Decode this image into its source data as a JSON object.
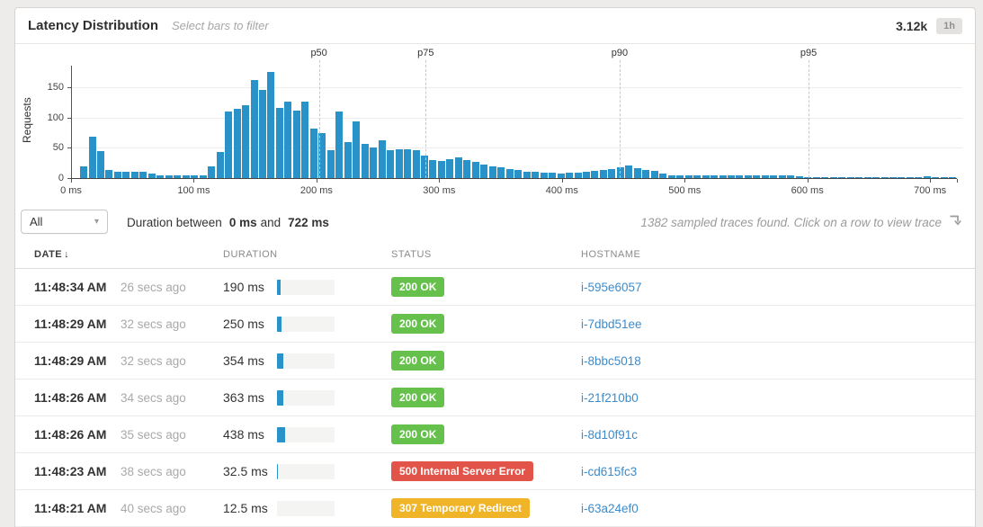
{
  "header": {
    "title": "Latency Distribution",
    "subtitle": "Select bars to filter",
    "trace_count": "3.12k",
    "time_range": "1h"
  },
  "chart_data": {
    "type": "bar",
    "ylabel": "Requests",
    "y_ticks": [
      0,
      50,
      100,
      150
    ],
    "ylim": [
      0,
      180
    ],
    "x_tick_labels": [
      "0 ms",
      "100 ms",
      "200 ms",
      "300 ms",
      "400 ms",
      "500 ms",
      "600 ms",
      "700 ms"
    ],
    "x_ticks_ms": [
      0,
      100,
      200,
      300,
      400,
      500,
      600,
      700
    ],
    "xlim_ms": [
      0,
      722
    ],
    "bar_width_ms": 6.94,
    "bar_color": "#2992c9",
    "grid": true,
    "values": [
      0,
      20,
      68,
      44,
      14,
      10,
      10,
      10,
      11,
      7,
      5,
      5,
      5,
      5,
      5,
      5,
      20,
      43,
      110,
      114,
      121,
      162,
      146,
      175,
      116,
      126,
      111,
      126,
      81,
      74,
      46,
      110,
      59,
      94,
      56,
      51,
      62,
      46,
      47,
      47,
      46,
      37,
      30,
      28,
      31,
      34,
      29,
      26,
      23,
      20,
      18,
      15,
      13,
      11,
      10,
      9,
      9,
      8,
      9,
      9,
      10,
      12,
      13,
      15,
      18,
      21,
      16,
      13,
      12,
      7,
      5,
      5,
      5,
      5,
      5,
      5,
      5,
      5,
      5,
      5,
      5,
      5,
      5,
      5,
      5,
      3,
      2,
      2,
      2,
      2,
      2,
      2,
      2,
      2,
      2,
      2,
      2,
      2,
      2,
      2,
      3,
      2,
      2,
      2
    ],
    "percentiles": [
      {
        "label": "p50",
        "ms": 202
      },
      {
        "label": "p75",
        "ms": 289
      },
      {
        "label": "p90",
        "ms": 447
      },
      {
        "label": "p95",
        "ms": 601
      }
    ]
  },
  "controls": {
    "filter_value": "All",
    "duration_prefix": "Duration between",
    "duration_min": "0 ms",
    "duration_and": "and",
    "duration_max": "722 ms",
    "summary": "1382 sampled traces found. Click on a row to view trace"
  },
  "icons": {
    "dropdown_caret": "▾",
    "sort_desc": "↓"
  },
  "table": {
    "columns": [
      "DATE",
      "DURATION",
      "STATUS",
      "HOSTNAME"
    ],
    "sort_column": "DATE",
    "rows": [
      {
        "time": "11:48:34 AM",
        "ago": "26 secs ago",
        "duration": "190 ms",
        "duration_fill_pct": 6,
        "status": "200 OK",
        "status_type": "success",
        "hostname": "i-595e6057"
      },
      {
        "time": "11:48:29 AM",
        "ago": "32 secs ago",
        "duration": "250 ms",
        "duration_fill_pct": 8,
        "status": "200 OK",
        "status_type": "success",
        "hostname": "i-7dbd51ee"
      },
      {
        "time": "11:48:29 AM",
        "ago": "32 secs ago",
        "duration": "354 ms",
        "duration_fill_pct": 11,
        "status": "200 OK",
        "status_type": "success",
        "hostname": "i-8bbc5018"
      },
      {
        "time": "11:48:26 AM",
        "ago": "34 secs ago",
        "duration": "363 ms",
        "duration_fill_pct": 11,
        "status": "200 OK",
        "status_type": "success",
        "hostname": "i-21f210b0"
      },
      {
        "time": "11:48:26 AM",
        "ago": "35 secs ago",
        "duration": "438 ms",
        "duration_fill_pct": 14,
        "status": "200 OK",
        "status_type": "success",
        "hostname": "i-8d10f91c"
      },
      {
        "time": "11:48:23 AM",
        "ago": "38 secs ago",
        "duration": "32.5 ms",
        "duration_fill_pct": 2,
        "status": "500 Internal Server Error",
        "status_type": "error",
        "hostname": "i-cd615fc3"
      },
      {
        "time": "11:48:21 AM",
        "ago": "40 secs ago",
        "duration": "12.5 ms",
        "duration_fill_pct": 0,
        "status": "307 Temporary Redirect",
        "status_type": "redirect",
        "hostname": "i-63a24ef0"
      }
    ]
  },
  "colors": {
    "bar_blue": "#2992c9",
    "success": "#65c04c",
    "error": "#e25349",
    "redirect": "#f0b429",
    "link": "#3e8bc8"
  }
}
